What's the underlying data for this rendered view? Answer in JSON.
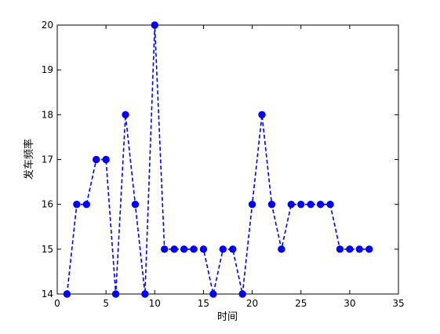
{
  "chart_data": {
    "type": "line",
    "xlabel": "时间",
    "ylabel": "发车频率",
    "xlim": [
      0,
      35
    ],
    "ylim": [
      14,
      20
    ],
    "xticks": [
      0,
      5,
      10,
      15,
      20,
      25,
      30,
      35
    ],
    "yticks": [
      14,
      15,
      16,
      17,
      18,
      19,
      20
    ],
    "grid": false,
    "series": [
      {
        "color": "#0000ff",
        "line_style": "dashed",
        "marker": "circle",
        "x": [
          1,
          2,
          3,
          4,
          5,
          6,
          7,
          8,
          9,
          10,
          11,
          12,
          13,
          14,
          15,
          16,
          17,
          18,
          19,
          20,
          21,
          22,
          23,
          24,
          25,
          26,
          27,
          28,
          29,
          30,
          31,
          32
        ],
        "y": [
          14,
          16,
          16,
          17,
          17,
          14,
          18,
          16,
          14,
          20,
          15,
          15,
          15,
          15,
          15,
          14,
          15,
          15,
          14,
          16,
          18,
          16,
          15,
          16,
          16,
          16,
          16,
          16,
          15,
          15,
          15,
          15
        ]
      }
    ]
  }
}
